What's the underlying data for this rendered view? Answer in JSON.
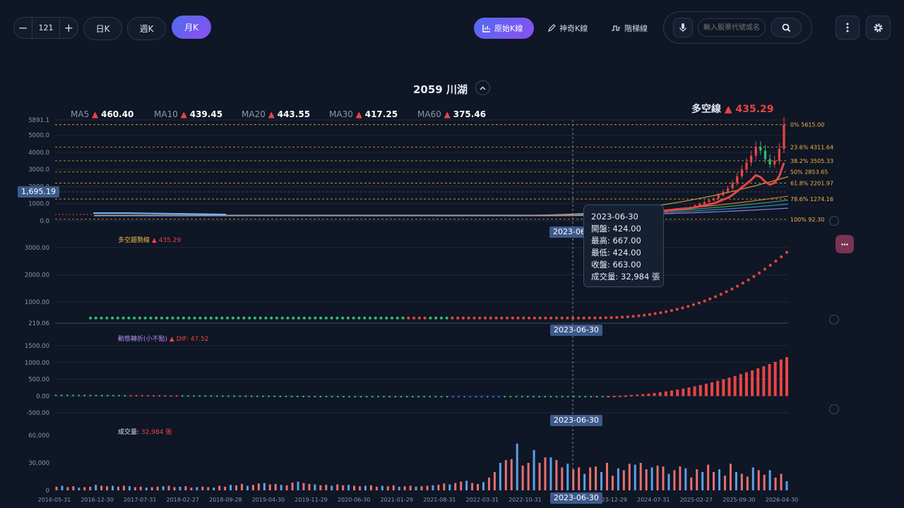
{
  "toolbar": {
    "stepper": {
      "minus": "−",
      "value": "121",
      "plus": "+"
    },
    "periods": [
      "日K",
      "週K",
      "月K"
    ],
    "modes": [
      "原始K線",
      "神奇K線",
      "階梯線"
    ],
    "search_placeholder": "輸入股票代號或名稱",
    "colors": {
      "accent_from": "#4f6cf0",
      "accent_to": "#8d4ff0",
      "up": "#e84545",
      "down": "#2fbf71"
    }
  },
  "title": "2059 川湖",
  "ma_legend": [
    {
      "label": "MA5",
      "arrow": "▲",
      "value": "460.40"
    },
    {
      "label": "MA10",
      "arrow": "▲",
      "value": "439.45"
    },
    {
      "label": "MA20",
      "arrow": "▲",
      "value": "443.55"
    },
    {
      "label": "MA30",
      "arrow": "▲",
      "value": "417.25"
    },
    {
      "label": "MA60",
      "arrow": "▲",
      "value": "375.46"
    }
  ],
  "trend_line": {
    "label": "多空線",
    "value": "▲ 435.29"
  },
  "crosshair_price": "1,695.19",
  "crosshair_date": "2023-06-30",
  "tooltip": {
    "date": "2023-06-30",
    "open": "開盤: 424.00",
    "high": "最高: 667.00",
    "low": "最低: 424.00",
    "close": "收盤: 663.00",
    "volume": "成交量: 32,984 張"
  },
  "panes": {
    "trend": {
      "label": "多空趨勢線",
      "value": "▲ 435.29"
    },
    "momentum": {
      "label": "動態轉折(小不點)",
      "value": "▲ DIF: 47.52"
    },
    "volume": {
      "label": "成交量:",
      "value": "32,984 張"
    }
  },
  "chart_data": [
    {
      "type": "line",
      "name": "main-price",
      "y_ticks": [
        "5891.1",
        "5000.0",
        "4000.0",
        "3000.0",
        "2000.0",
        "1000.0",
        "0.0"
      ],
      "ylim": [
        0,
        5891.1
      ],
      "fib_levels": [
        {
          "pct": "0%",
          "value": "5615.00"
        },
        {
          "pct": "23.6%",
          "value": "4311.64"
        },
        {
          "pct": "38.2%",
          "value": "3505.33"
        },
        {
          "pct": "50%",
          "value": "2853.65"
        },
        {
          "pct": "61.8%",
          "value": "2201.97"
        },
        {
          "pct": "78.6%",
          "value": "1274.16"
        },
        {
          "pct": "100%",
          "value": "92.30"
        }
      ],
      "closes": [
        410,
        405,
        400,
        395,
        398,
        390,
        385,
        380,
        378,
        375,
        372,
        380,
        390,
        395,
        400,
        420,
        430,
        450,
        470,
        500,
        560,
        620,
        680,
        720,
        760,
        800,
        900,
        1000,
        1100,
        1200,
        1300,
        1500,
        1700,
        1900,
        2200,
        2600,
        3000,
        3400,
        3800,
        4300,
        4100,
        3600,
        3300,
        3500,
        4200,
        5615
      ]
    },
    {
      "type": "scatter",
      "name": "trend-line",
      "y_ticks": [
        "3000.00",
        "2000.00",
        "1000.00",
        "219.06"
      ],
      "ylim": [
        219.06,
        3000
      ]
    },
    {
      "type": "bar",
      "name": "momentum",
      "y_ticks": [
        "1500.00",
        "1000.00",
        "500.00",
        "0.00",
        "-500.00"
      ],
      "ylim": [
        -500,
        1500
      ]
    },
    {
      "type": "bar",
      "name": "volume",
      "y_ticks": [
        "60,000",
        "30,000",
        "0"
      ],
      "ylim": [
        0,
        60000
      ],
      "x_ticks": [
        "2016-05-31",
        "2016-12-30",
        "2017-07-31",
        "2018-02-27",
        "2018-09-28",
        "2019-04-30",
        "2019-11-29",
        "2020-06-30",
        "2021-01-29",
        "2021-08-31",
        "2022-03-31",
        "2022-10-31",
        "2023-06-30",
        "2023-12-29",
        "2024-07-31",
        "2025-02-27",
        "2025-09-30",
        "2026-04-30"
      ],
      "values": [
        4000,
        5000,
        3500,
        4500,
        3000,
        3500,
        4000,
        6000,
        5000,
        4500,
        5000,
        4000,
        5000,
        4500,
        3500,
        4000,
        3000,
        3500,
        4000,
        4500,
        5000,
        3500,
        4000,
        4500,
        3000,
        3500,
        4000,
        3500,
        3000,
        5000,
        4000,
        6000,
        5500,
        7000,
        5000,
        6000,
        7500,
        8000,
        6500,
        7000,
        6000,
        5500,
        8500,
        9500,
        8000,
        7000,
        6500,
        5500,
        6000,
        5000,
        6500,
        5500,
        6000,
        5000,
        4500,
        5000,
        5500,
        4000,
        5000,
        4500,
        5500,
        4000,
        4500,
        5000,
        4000,
        4500,
        5000,
        5500,
        6000,
        7500,
        6500,
        8000,
        9500,
        10500,
        8000,
        7000,
        9000,
        14000,
        20000,
        30000,
        32984,
        34000,
        51000,
        27000,
        30000,
        44000,
        30000,
        36000,
        36000,
        33000,
        25000,
        29000,
        23000,
        25000,
        18000,
        25000,
        26000,
        20000,
        30000,
        16000,
        24000,
        22000,
        29000,
        28000,
        30000,
        23000,
        25000,
        27000,
        26000,
        18000,
        22000,
        26000,
        24000,
        14000,
        23000,
        20000,
        28000,
        20000,
        23000,
        16000,
        29000,
        20000,
        18000,
        15000,
        25000,
        22000,
        17000,
        22000,
        14000,
        18000,
        10000
      ]
    }
  ]
}
